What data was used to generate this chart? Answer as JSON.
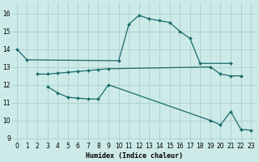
{
  "xlabel": "Humidex (Indice chaleur)",
  "bg_color": "#cceae8",
  "grid_color": "#b0d4d0",
  "line_color": "#1a6b6b",
  "xlim": [
    -0.5,
    23.5
  ],
  "ylim": [
    8.8,
    16.6
  ],
  "yticks": [
    9,
    10,
    11,
    12,
    13,
    14,
    15,
    16
  ],
  "xticks": [
    0,
    1,
    2,
    3,
    4,
    5,
    6,
    7,
    8,
    9,
    10,
    11,
    12,
    13,
    14,
    15,
    16,
    17,
    18,
    19,
    20,
    21,
    22,
    23
  ],
  "series": [
    {
      "x": [
        0,
        1,
        10,
        11,
        12,
        13,
        14,
        15,
        16,
        17,
        18,
        21
      ],
      "y": [
        14.0,
        13.4,
        13.35,
        15.4,
        15.9,
        15.7,
        15.6,
        15.5,
        15.0,
        14.6,
        13.2,
        13.2
      ]
    },
    {
      "x": [
        2,
        3,
        4,
        5,
        6,
        7,
        8,
        9,
        19,
        20,
        21,
        22
      ],
      "y": [
        12.6,
        12.6,
        12.65,
        12.7,
        12.75,
        12.8,
        12.85,
        12.9,
        13.0,
        12.6,
        12.5,
        12.5
      ]
    },
    {
      "x": [
        3,
        4,
        5,
        6,
        7,
        8,
        9,
        19,
        20,
        21,
        22,
        23
      ],
      "y": [
        11.9,
        11.55,
        11.3,
        11.25,
        11.2,
        11.2,
        12.0,
        10.0,
        9.75,
        10.5,
        9.5,
        9.45
      ]
    }
  ]
}
